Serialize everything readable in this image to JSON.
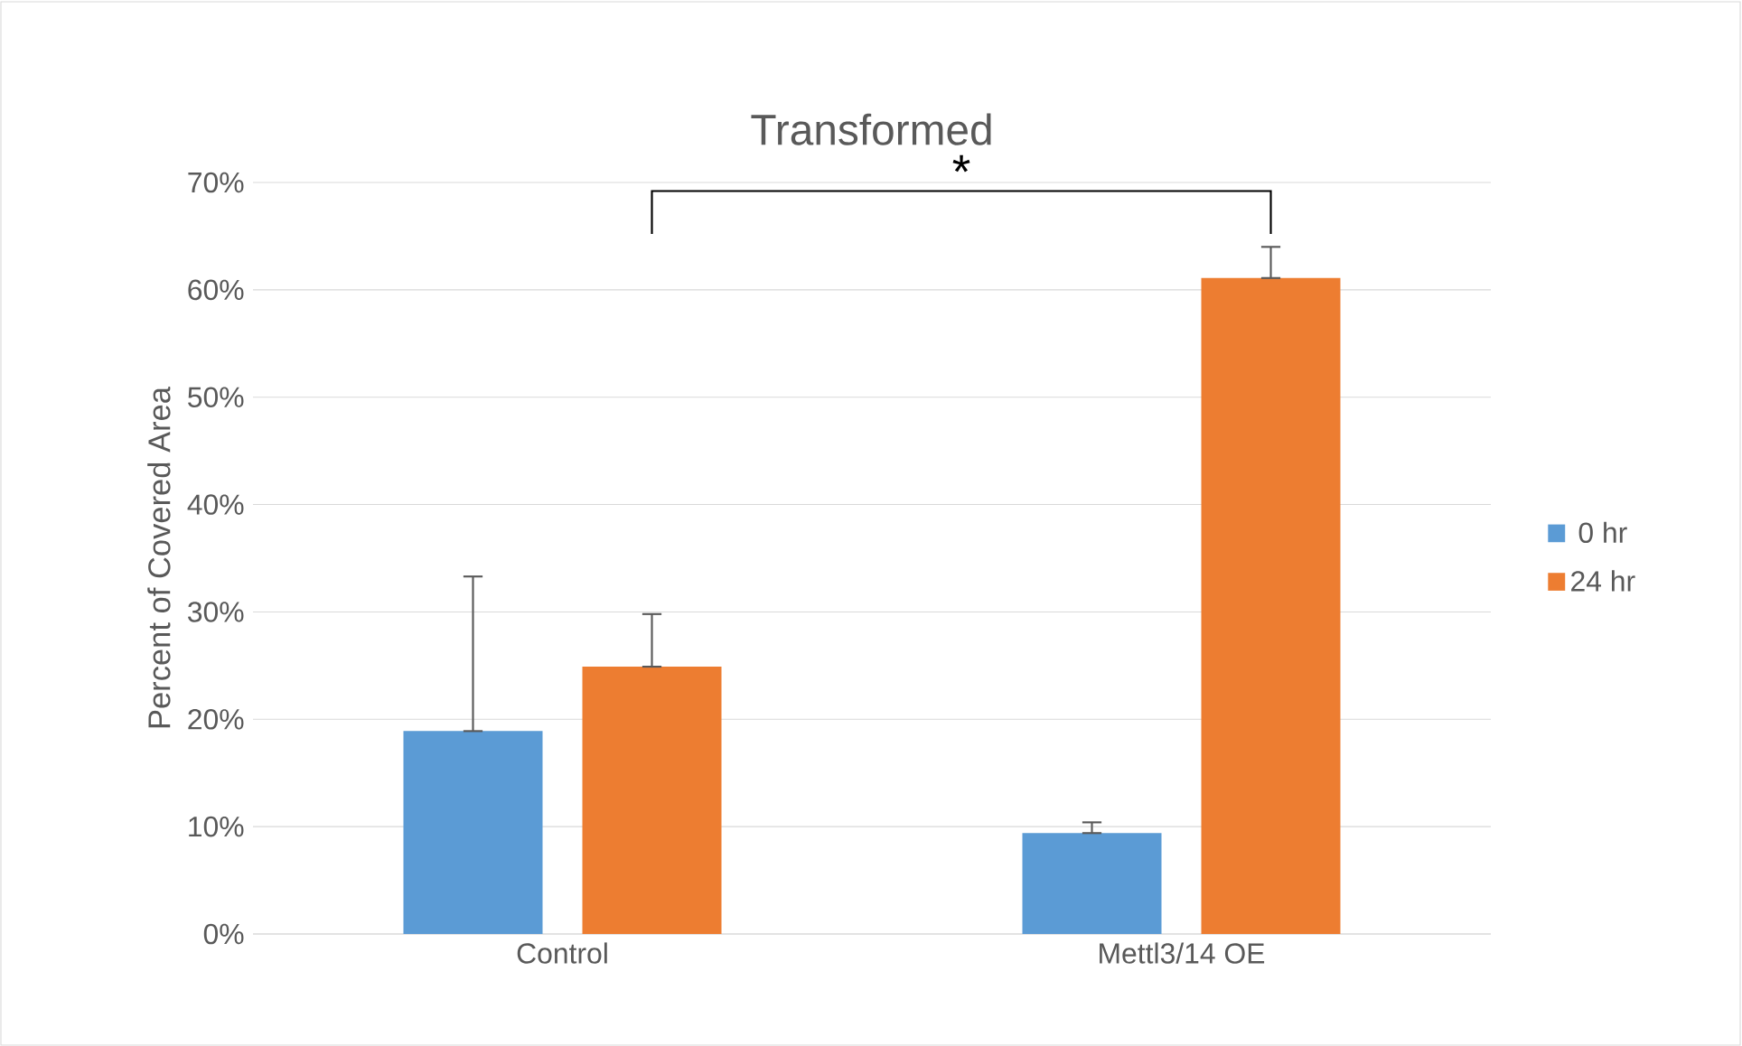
{
  "chart_data": {
    "type": "bar",
    "title": "Transformed",
    "ylabel": "Percent of Covered Area",
    "categories": [
      "Control",
      "Mettl3/14 OE"
    ],
    "series": [
      {
        "name": "0 hr",
        "color": "#5b9bd5",
        "values": [
          18.9,
          9.4
        ],
        "errors": [
          [
            18.9,
            33.3
          ],
          [
            9.4,
            10.4
          ]
        ]
      },
      {
        "name": "24 hr",
        "color": "#ed7d31",
        "values": [
          24.9,
          61.1
        ],
        "errors": [
          [
            24.9,
            29.8
          ],
          [
            61.1,
            64.0
          ]
        ]
      }
    ],
    "ylim": [
      0,
      70
    ],
    "yticks": [
      {
        "value": 0,
        "label": "0%"
      },
      {
        "value": 10,
        "label": "10%"
      },
      {
        "value": 20,
        "label": "20%"
      },
      {
        "value": 30,
        "label": "30%"
      },
      {
        "value": 40,
        "label": "40%"
      },
      {
        "value": 50,
        "label": "50%"
      },
      {
        "value": 60,
        "label": "60%"
      },
      {
        "value": 70,
        "label": "70%"
      }
    ],
    "grid": "y",
    "legend": "right",
    "annotations": [
      "*"
    ]
  }
}
